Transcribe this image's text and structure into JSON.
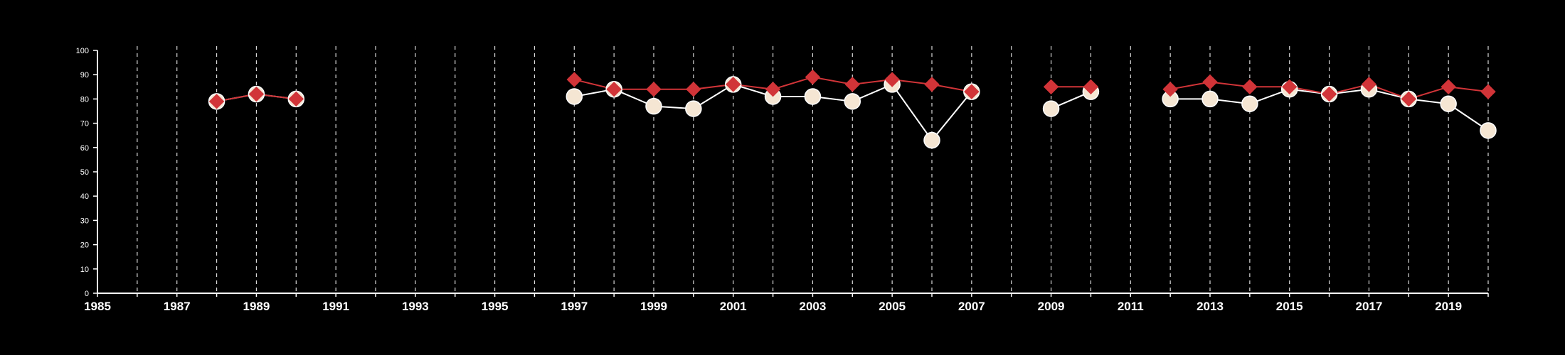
{
  "chart_data": {
    "type": "line",
    "title": "",
    "xlabel": "",
    "ylabel": "",
    "xlim": [
      1985,
      2020
    ],
    "ylim": [
      0,
      100
    ],
    "x_ticks": [
      1985,
      1987,
      1989,
      1991,
      1993,
      1995,
      1997,
      1999,
      2001,
      2003,
      2005,
      2007,
      2009,
      2011,
      2013,
      2015,
      2017,
      2019
    ],
    "x_tick_labels": [
      "1985",
      "1987",
      "1989",
      "1991",
      "1993",
      "1995",
      "1997",
      "1999",
      "2001",
      "2003",
      "2005",
      "2007",
      "2009",
      "2011",
      "2013",
      "2015",
      "2017",
      "2019"
    ],
    "y_ticks": [
      0,
      10,
      20,
      30,
      40,
      50,
      60,
      70,
      80,
      90,
      100
    ],
    "y_tick_labels": [
      "0",
      "10",
      "20",
      "30",
      "40",
      "50",
      "60",
      "70",
      "80",
      "90",
      "100"
    ],
    "vertical_gridlines": "dashed, every year",
    "legend": "none",
    "series": [
      {
        "marker": "circle",
        "color": "#f5e6d3",
        "line_color": "#ffffff",
        "points": [
          [
            1988,
            79
          ],
          [
            1989,
            82
          ],
          [
            1990,
            80
          ],
          [
            1997,
            81
          ],
          [
            1998,
            84
          ],
          [
            1999,
            77
          ],
          [
            2000,
            76
          ],
          [
            2001,
            86
          ],
          [
            2002,
            81
          ],
          [
            2003,
            81
          ],
          [
            2004,
            79
          ],
          [
            2005,
            86
          ],
          [
            2006,
            63
          ],
          [
            2007,
            83
          ],
          [
            2009,
            76
          ],
          [
            2010,
            83
          ],
          [
            2012,
            80
          ],
          [
            2013,
            80
          ],
          [
            2014,
            78
          ],
          [
            2015,
            84
          ],
          [
            2016,
            82
          ],
          [
            2017,
            84
          ],
          [
            2018,
            80
          ],
          [
            2019,
            78
          ],
          [
            2020,
            67
          ]
        ]
      },
      {
        "marker": "diamond",
        "color": "#d13438",
        "line_color": "#d13438",
        "points": [
          [
            1988,
            79
          ],
          [
            1989,
            82
          ],
          [
            1990,
            80
          ],
          [
            1997,
            88
          ],
          [
            1998,
            84
          ],
          [
            1999,
            84
          ],
          [
            2000,
            84
          ],
          [
            2001,
            86
          ],
          [
            2002,
            84
          ],
          [
            2003,
            89
          ],
          [
            2004,
            86
          ],
          [
            2005,
            88
          ],
          [
            2006,
            86
          ],
          [
            2007,
            83
          ],
          [
            2009,
            85
          ],
          [
            2010,
            85
          ],
          [
            2012,
            84
          ],
          [
            2013,
            87
          ],
          [
            2014,
            85
          ],
          [
            2015,
            85
          ],
          [
            2016,
            82
          ],
          [
            2017,
            86
          ],
          [
            2018,
            80
          ],
          [
            2019,
            85
          ],
          [
            2020,
            83
          ]
        ]
      }
    ]
  }
}
